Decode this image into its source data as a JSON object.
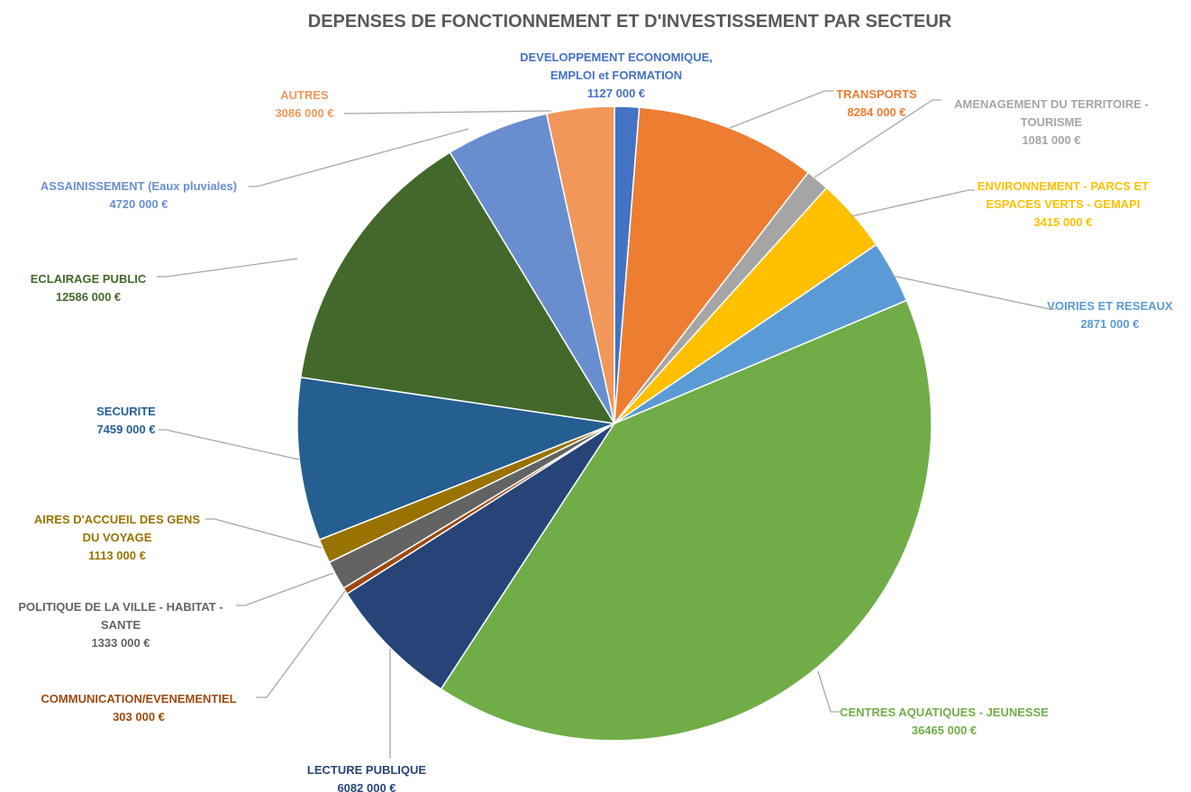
{
  "chart_data": {
    "type": "pie",
    "title": "DEPENSES DE FONCTIONNEMENT ET D'INVESTISSEMENT PAR SECTEUR",
    "currency": "€",
    "slices": [
      {
        "label": [
          "DEVELOPPEMENT ECONOMIQUE,",
          "EMPLOI et FORMATION"
        ],
        "value": 1127000,
        "display": "1127 000 €",
        "color": "#4472C4"
      },
      {
        "label": [
          "TRANSPORTS"
        ],
        "value": 8284000,
        "display": "8284 000 €",
        "color": "#ED7D31"
      },
      {
        "label": [
          "AMENAGEMENT DU TERRITOIRE -",
          "TOURISME"
        ],
        "value": 1081000,
        "display": "1081 000 €",
        "color": "#A5A5A5"
      },
      {
        "label": [
          "ENVIRONNEMENT - PARCS ET",
          "ESPACES VERTS - GEMAPI"
        ],
        "value": 3415000,
        "display": "3415 000 €",
        "color": "#FFC000"
      },
      {
        "label": [
          "VOIRIES ET RESEAUX"
        ],
        "value": 2871000,
        "display": "2871 000 €",
        "color": "#5B9BD5"
      },
      {
        "label": [
          "CENTRES AQUATIQUES - JEUNESSE"
        ],
        "value": 36465000,
        "display": "36465 000 €",
        "color": "#70AD47"
      },
      {
        "label": [
          "LECTURE PUBLIQUE"
        ],
        "value": 6082000,
        "display": "6082 000 €",
        "color": "#264478"
      },
      {
        "label": [
          "COMMUNICATION/EVENEMENTIEL"
        ],
        "value": 303000,
        "display": "303 000 €",
        "color": "#9E480E"
      },
      {
        "label": [
          "POLITIQUE DE LA VILLE - HABITAT -",
          "SANTE"
        ],
        "value": 1333000,
        "display": "1333 000 €",
        "color": "#636363"
      },
      {
        "label": [
          "AIRES D'ACCUEIL DES GENS",
          "DU VOYAGE"
        ],
        "value": 1113000,
        "display": "1113 000 €",
        "color": "#997300"
      },
      {
        "label": [
          "SECURITE"
        ],
        "value": 7459000,
        "display": "7459 000 €",
        "color": "#255E91"
      },
      {
        "label": [
          "ECLAIRAGE PUBLIC"
        ],
        "value": 12586000,
        "display": "12586 000 €",
        "color": "#43682B"
      },
      {
        "label": [
          "ASSAINISSEMENT (Eaux pluviales)"
        ],
        "value": 4720000,
        "display": "4720 000 €",
        "color": "#698ED0"
      },
      {
        "label": [
          "AUTRES"
        ],
        "value": 3086000,
        "display": "3086 000 €",
        "color": "#F1975A"
      }
    ],
    "start_angle_deg": 0,
    "direction": "clockwise",
    "legend": "none",
    "data_labels": "outside with leader lines"
  }
}
